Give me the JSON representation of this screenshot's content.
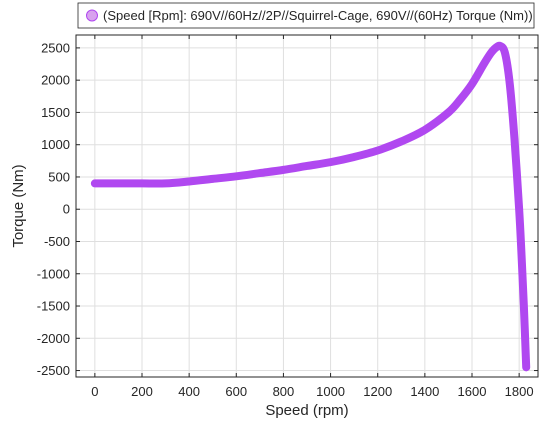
{
  "chart_data": {
    "type": "line",
    "title": "",
    "xlabel": "Speed (rpm)",
    "ylabel": "Torque (Nm)",
    "xlim": [
      -80,
      1880
    ],
    "ylim": [
      -2600,
      2700
    ],
    "xticks": [
      0,
      200,
      400,
      600,
      800,
      1000,
      1200,
      1400,
      1600,
      1800
    ],
    "yticks": [
      -2500,
      -2000,
      -1500,
      -1000,
      -500,
      0,
      500,
      1000,
      1500,
      2000,
      2500
    ],
    "grid": true,
    "legend_position": "top",
    "series": [
      {
        "name": "(Speed [Rpm]: 690V//60Hz//2P//Squirrel-Cage, 690V//(60Hz) Torque (Nm))",
        "color": "#b048f0",
        "x": [
          0,
          100,
          200,
          300,
          400,
          500,
          600,
          700,
          800,
          900,
          1000,
          1100,
          1200,
          1300,
          1400,
          1500,
          1550,
          1600,
          1650,
          1680,
          1700,
          1720,
          1740,
          1760,
          1780,
          1800,
          1810,
          1820,
          1830
        ],
        "y": [
          400,
          400,
          400,
          400,
          430,
          470,
          510,
          560,
          610,
          670,
          730,
          810,
          910,
          1050,
          1230,
          1500,
          1700,
          1940,
          2250,
          2420,
          2500,
          2530,
          2420,
          1950,
          1100,
          0,
          -700,
          -1500,
          -2450
        ]
      }
    ]
  }
}
